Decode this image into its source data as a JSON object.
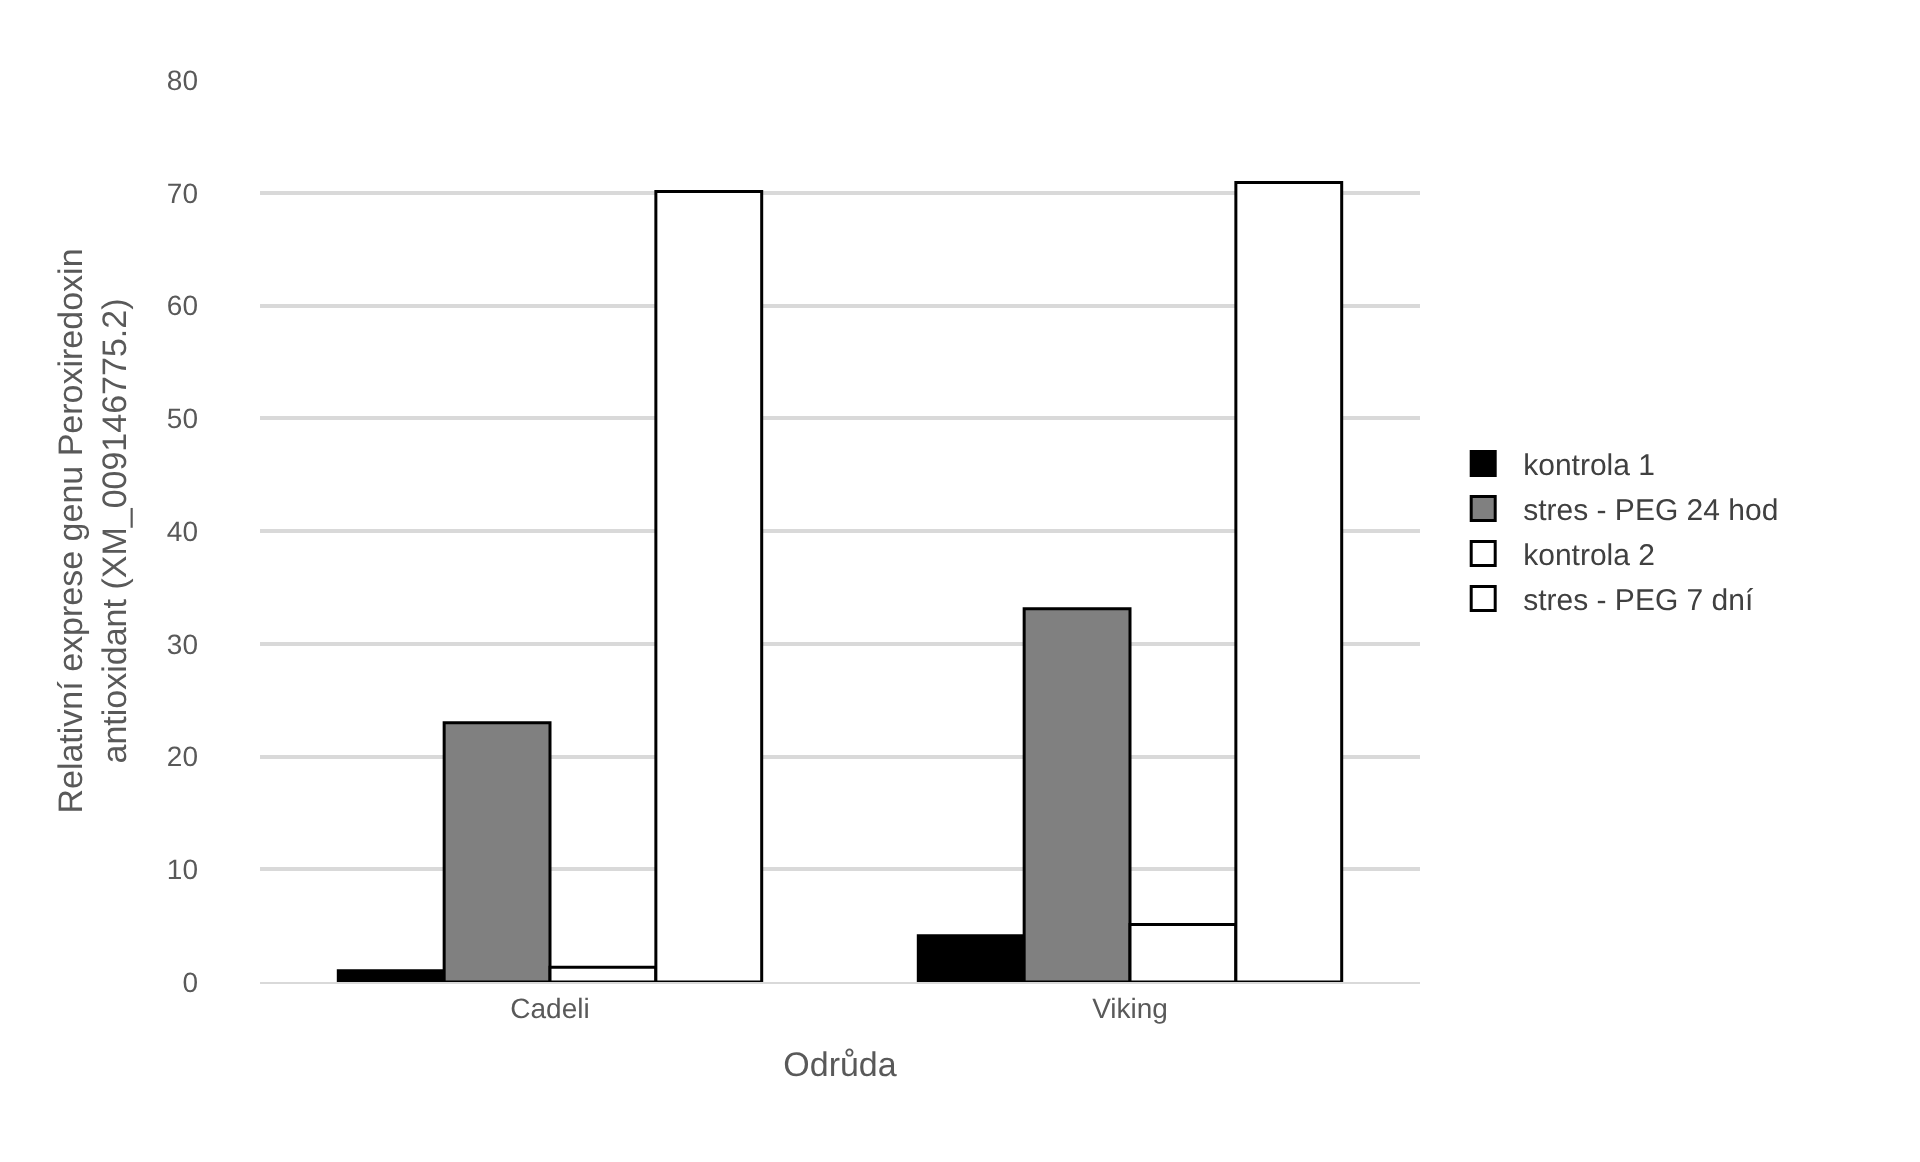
{
  "chart_data": {
    "type": "bar",
    "xlabel": "Odrůda",
    "ylabel": "Relativní exprese genu Peroxiredoxin antioxidant (XM_009146775.2)",
    "categories": [
      "Cadeli",
      "Viking"
    ],
    "series": [
      {
        "name": "kontrola 1",
        "color": "#000000",
        "values": [
          1.0,
          4.1
        ]
      },
      {
        "name": "stres - PEG 24 hod",
        "color": "#808080",
        "values": [
          23.0,
          33.1
        ]
      },
      {
        "name": "kontrola 2",
        "color": "#ffffff",
        "values": [
          1.3,
          5.1
        ]
      },
      {
        "name": "stres - PEG 7 dní",
        "color": "#ffffff",
        "values": [
          70.1,
          70.9
        ]
      }
    ],
    "ylim": [
      0,
      80
    ],
    "yticks": [
      0,
      10,
      20,
      30,
      40,
      50,
      60,
      70,
      80
    ],
    "grid": "y",
    "legend": "right"
  }
}
